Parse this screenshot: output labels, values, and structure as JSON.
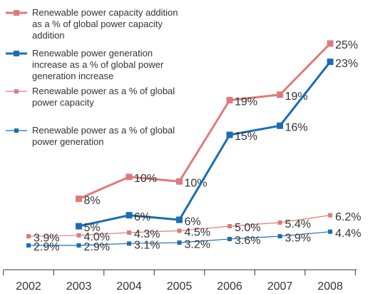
{
  "chart_data": {
    "type": "line",
    "categories": [
      "2002",
      "2003",
      "2004",
      "2005",
      "2006",
      "2007",
      "2008"
    ],
    "ylim": [
      0,
      27
    ],
    "series": [
      {
        "name": "Renewable power capacity addition as a % of global power capacity addition",
        "color": "#e07a7a",
        "width": 3,
        "values": [
          null,
          8,
          10.4,
          9.9,
          18.8,
          19.4,
          25
        ],
        "value_labels": [
          null,
          "8%",
          "10%",
          "10%",
          "19%",
          "19%",
          "25%"
        ]
      },
      {
        "name": "Renewable power generation increase as a % of global power generation increase",
        "color": "#1a6db5",
        "width": 3,
        "values": [
          null,
          5,
          6.2,
          5.7,
          15,
          16,
          23
        ],
        "value_labels": [
          null,
          "5%",
          "6%",
          "6%",
          "15%",
          "16%",
          "23%"
        ]
      },
      {
        "name": "Renewable power as a % of global power capacity",
        "color": "#e07a7a",
        "width": 1.2,
        "values": [
          3.9,
          4.0,
          4.3,
          4.5,
          5.0,
          5.4,
          6.2
        ],
        "value_labels": [
          "3.9%",
          "4.0%",
          "4.3%",
          "4.5%",
          "5.0%",
          "5.4%",
          "6.2%"
        ]
      },
      {
        "name": "Renewable power as a % of global power generation",
        "color": "#1a6db5",
        "width": 1.2,
        "values": [
          2.9,
          2.9,
          3.1,
          3.2,
          3.6,
          3.9,
          4.4
        ],
        "value_labels": [
          "2.9%",
          "2.9%",
          "3.1%",
          "3.2%",
          "3.6%",
          "3.9%",
          "4.4%"
        ]
      }
    ]
  }
}
